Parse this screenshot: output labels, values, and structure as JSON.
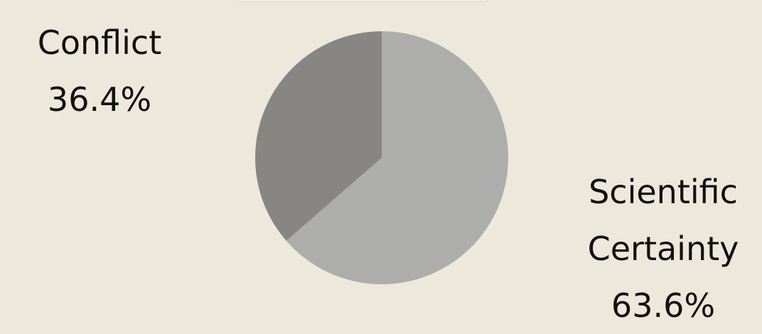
{
  "chart_data": {
    "type": "pie",
    "categories": [
      "Scientific Certainty",
      "Conflict"
    ],
    "values": [
      63.6,
      36.4
    ],
    "value_labels": [
      "63.6%",
      "36.4%"
    ],
    "colors": [
      "#adadab",
      "#878683"
    ]
  }
}
